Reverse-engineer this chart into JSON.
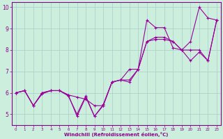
{
  "x": [
    0,
    1,
    2,
    3,
    4,
    5,
    6,
    7,
    8,
    9,
    10,
    11,
    12,
    13,
    14,
    15,
    16,
    17,
    18,
    19,
    20,
    21,
    22,
    23
  ],
  "y_a": [
    6.0,
    6.1,
    5.4,
    6.0,
    6.1,
    6.1,
    5.9,
    4.9,
    5.8,
    4.9,
    5.4,
    6.5,
    6.6,
    7.1,
    7.1,
    9.4,
    9.05,
    9.05,
    8.1,
    8.0,
    8.4,
    10.0,
    9.5,
    9.4
  ],
  "y_b": [
    6.0,
    6.1,
    5.4,
    6.0,
    6.1,
    6.1,
    5.9,
    5.8,
    5.7,
    5.4,
    5.4,
    6.5,
    6.6,
    6.6,
    7.1,
    8.4,
    8.6,
    8.6,
    8.4,
    8.0,
    8.0,
    8.0,
    7.5,
    9.4
  ],
  "y_c": [
    6.0,
    6.1,
    5.4,
    5.95,
    6.1,
    6.1,
    5.85,
    5.0,
    5.85,
    4.9,
    5.45,
    6.5,
    6.6,
    6.5,
    7.1,
    8.4,
    8.5,
    8.5,
    8.4,
    8.0,
    7.5,
    7.9,
    7.5,
    9.4
  ],
  "line_color": "#990099",
  "bg_color": "#cceedd",
  "grid_color": "#aacccc",
  "axis_color": "#880088",
  "tick_color": "#880088",
  "xlabel": "Windchill (Refroidissement éolien,°C)",
  "xlim": [
    -0.5,
    23.5
  ],
  "ylim": [
    4.5,
    10.25
  ],
  "yticks": [
    5,
    6,
    7,
    8,
    9,
    10
  ],
  "xticks": [
    0,
    1,
    2,
    3,
    4,
    5,
    6,
    7,
    8,
    9,
    10,
    11,
    12,
    13,
    14,
    15,
    16,
    17,
    18,
    19,
    20,
    21,
    22,
    23
  ],
  "xlabel_fontsize": 5.0,
  "xlabel_fontweight": "bold",
  "ytick_fontsize": 5.5,
  "xtick_fontsize": 4.0,
  "marker_size": 2.5,
  "line_width": 0.8
}
